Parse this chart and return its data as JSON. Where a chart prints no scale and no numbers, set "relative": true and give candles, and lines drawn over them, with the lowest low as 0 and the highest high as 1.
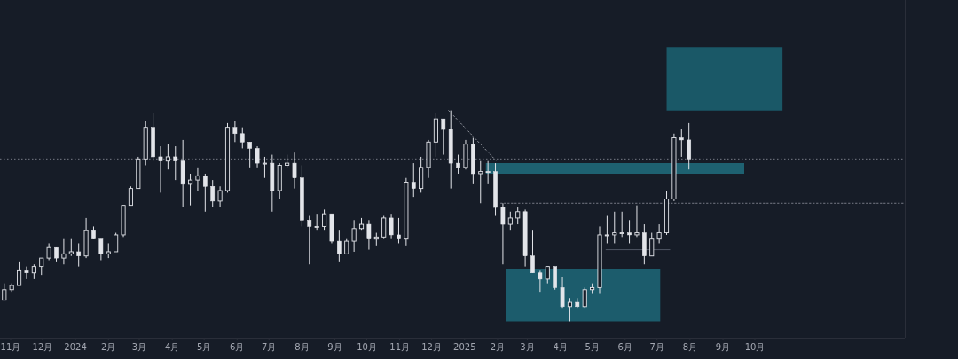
{
  "chart_data": {
    "type": "candlestick",
    "relative": true,
    "color": "#e3e5ea",
    "xlim": [
      "2023-10-22",
      "2026-02-19"
    ],
    "xticks": [
      {
        "value": "2023-11-01",
        "label": "11月"
      },
      {
        "value": "2023-12-01",
        "label": "12月"
      },
      {
        "value": "2024-01-01",
        "label": "2024"
      },
      {
        "value": "2024-02-01",
        "label": "2月"
      },
      {
        "value": "2024-03-01",
        "label": "3月"
      },
      {
        "value": "2024-04-01",
        "label": "4月"
      },
      {
        "value": "2024-05-01",
        "label": "5月"
      },
      {
        "value": "2024-06-01",
        "label": "6月"
      },
      {
        "value": "2024-07-01",
        "label": "7月"
      },
      {
        "value": "2024-08-01",
        "label": "8月"
      },
      {
        "value": "2024-09-01",
        "label": "9月"
      },
      {
        "value": "2024-10-01",
        "label": "10月"
      },
      {
        "value": "2024-11-01",
        "label": "11月"
      },
      {
        "value": "2024-12-01",
        "label": "12月"
      },
      {
        "value": "2025-01-01",
        "label": "2025"
      },
      {
        "value": "2025-02-01",
        "label": "2月"
      },
      {
        "value": "2025-03-01",
        "label": "3月"
      },
      {
        "value": "2025-04-01",
        "label": "4月"
      },
      {
        "value": "2025-05-01",
        "label": "5月"
      },
      {
        "value": "2025-06-01",
        "label": "6月"
      },
      {
        "value": "2025-07-01",
        "label": "7月"
      },
      {
        "value": "2025-08-01",
        "label": "8月"
      },
      {
        "value": "2025-09-01",
        "label": "9月"
      },
      {
        "value": "2025-10-01",
        "label": "10月"
      }
    ],
    "x": [
      "2023-10-26",
      "2023-11-02",
      "2023-11-09",
      "2023-11-16",
      "2023-11-23",
      "2023-11-30",
      "2023-12-07",
      "2023-12-14",
      "2023-12-21",
      "2023-12-28",
      "2024-01-04",
      "2024-01-11",
      "2024-01-18",
      "2024-01-25",
      "2024-02-01",
      "2024-02-08",
      "2024-02-15",
      "2024-02-22",
      "2024-02-29",
      "2024-03-07",
      "2024-03-14",
      "2024-03-21",
      "2024-03-28",
      "2024-04-04",
      "2024-04-11",
      "2024-04-18",
      "2024-04-25",
      "2024-05-02",
      "2024-05-09",
      "2024-05-16",
      "2024-05-23",
      "2024-05-30",
      "2024-06-06",
      "2024-06-13",
      "2024-06-20",
      "2024-06-27",
      "2024-07-04",
      "2024-07-11",
      "2024-07-18",
      "2024-07-25",
      "2024-08-01",
      "2024-08-08",
      "2024-08-15",
      "2024-08-22",
      "2024-08-29",
      "2024-09-05",
      "2024-09-12",
      "2024-09-19",
      "2024-09-26",
      "2024-10-03",
      "2024-10-10",
      "2024-10-17",
      "2024-10-24",
      "2024-10-31",
      "2024-11-07",
      "2024-11-14",
      "2024-11-21",
      "2024-11-28",
      "2024-12-05",
      "2024-12-12",
      "2024-12-19",
      "2024-12-26",
      "2025-01-02",
      "2025-01-09",
      "2025-01-16",
      "2025-01-23",
      "2025-01-30",
      "2025-02-06",
      "2025-02-13",
      "2025-02-20",
      "2025-02-27",
      "2025-03-06",
      "2025-03-13",
      "2025-03-20",
      "2025-03-27",
      "2025-04-03",
      "2025-04-10",
      "2025-04-17",
      "2025-04-24",
      "2025-05-01",
      "2025-05-08",
      "2025-05-15",
      "2025-05-22",
      "2025-05-29",
      "2025-06-05",
      "2025-06-12",
      "2025-06-19",
      "2025-06-26",
      "2025-07-03",
      "2025-07-10",
      "2025-07-17",
      "2025-07-24",
      "2025-07-31"
    ],
    "ohlc": [
      [
        0.1,
        0.18,
        0.1,
        0.15
      ],
      [
        0.15,
        0.18,
        0.14,
        0.17
      ],
      [
        0.17,
        0.28,
        0.17,
        0.24
      ],
      [
        0.24,
        0.26,
        0.2,
        0.23
      ],
      [
        0.23,
        0.27,
        0.2,
        0.26
      ],
      [
        0.26,
        0.3,
        0.22,
        0.3
      ],
      [
        0.3,
        0.37,
        0.29,
        0.35
      ],
      [
        0.35,
        0.35,
        0.28,
        0.3
      ],
      [
        0.3,
        0.39,
        0.27,
        0.32
      ],
      [
        0.32,
        0.39,
        0.31,
        0.33
      ],
      [
        0.33,
        0.37,
        0.26,
        0.31
      ],
      [
        0.31,
        0.49,
        0.3,
        0.43
      ],
      [
        0.43,
        0.45,
        0.39,
        0.39
      ],
      [
        0.39,
        0.39,
        0.29,
        0.32
      ],
      [
        0.32,
        0.37,
        0.3,
        0.33
      ],
      [
        0.33,
        0.42,
        0.33,
        0.41
      ],
      [
        0.41,
        0.55,
        0.4,
        0.55
      ],
      [
        0.55,
        0.64,
        0.55,
        0.63
      ],
      [
        0.63,
        0.78,
        0.63,
        0.77
      ],
      [
        0.77,
        0.95,
        0.74,
        0.92
      ],
      [
        0.92,
        0.99,
        0.76,
        0.78
      ],
      [
        0.78,
        0.83,
        0.61,
        0.76
      ],
      [
        0.76,
        0.84,
        0.72,
        0.78
      ],
      [
        0.78,
        0.83,
        0.67,
        0.76
      ],
      [
        0.76,
        0.86,
        0.54,
        0.65
      ],
      [
        0.65,
        0.7,
        0.55,
        0.67
      ],
      [
        0.67,
        0.73,
        0.62,
        0.69
      ],
      [
        0.69,
        0.7,
        0.52,
        0.64
      ],
      [
        0.64,
        0.67,
        0.54,
        0.57
      ],
      [
        0.57,
        0.64,
        0.54,
        0.62
      ],
      [
        0.62,
        0.94,
        0.61,
        0.92
      ],
      [
        0.92,
        0.95,
        0.85,
        0.89
      ],
      [
        0.89,
        0.92,
        0.82,
        0.85
      ],
      [
        0.85,
        0.85,
        0.73,
        0.82
      ],
      [
        0.82,
        0.83,
        0.73,
        0.75
      ],
      [
        0.75,
        0.78,
        0.68,
        0.75
      ],
      [
        0.75,
        0.79,
        0.52,
        0.62
      ],
      [
        0.62,
        0.75,
        0.58,
        0.74
      ],
      [
        0.74,
        0.79,
        0.73,
        0.75
      ],
      [
        0.75,
        0.8,
        0.63,
        0.68
      ],
      [
        0.68,
        0.74,
        0.45,
        0.48
      ],
      [
        0.48,
        0.5,
        0.27,
        0.45
      ],
      [
        0.45,
        0.51,
        0.43,
        0.45
      ],
      [
        0.45,
        0.53,
        0.43,
        0.51
      ],
      [
        0.51,
        0.51,
        0.37,
        0.38
      ],
      [
        0.38,
        0.43,
        0.28,
        0.32
      ],
      [
        0.32,
        0.39,
        0.32,
        0.38
      ],
      [
        0.38,
        0.48,
        0.33,
        0.44
      ],
      [
        0.44,
        0.49,
        0.43,
        0.46
      ],
      [
        0.46,
        0.48,
        0.34,
        0.39
      ],
      [
        0.39,
        0.42,
        0.36,
        0.4
      ],
      [
        0.4,
        0.5,
        0.39,
        0.49
      ],
      [
        0.49,
        0.51,
        0.39,
        0.41
      ],
      [
        0.41,
        0.49,
        0.37,
        0.39
      ],
      [
        0.39,
        0.68,
        0.36,
        0.66
      ],
      [
        0.66,
        0.75,
        0.59,
        0.63
      ],
      [
        0.63,
        0.78,
        0.61,
        0.73
      ],
      [
        0.73,
        0.86,
        0.68,
        0.85
      ],
      [
        0.85,
        0.99,
        0.78,
        0.96
      ],
      [
        0.96,
        0.96,
        0.79,
        0.91
      ],
      [
        0.91,
        1.0,
        0.63,
        0.75
      ],
      [
        0.75,
        0.79,
        0.7,
        0.73
      ],
      [
        0.73,
        0.86,
        0.72,
        0.84
      ],
      [
        0.84,
        0.87,
        0.65,
        0.7
      ],
      [
        0.7,
        0.76,
        0.56,
        0.71
      ],
      [
        0.71,
        0.76,
        0.65,
        0.71
      ],
      [
        0.71,
        0.75,
        0.5,
        0.54
      ],
      [
        0.54,
        0.56,
        0.27,
        0.46
      ],
      [
        0.46,
        0.52,
        0.43,
        0.49
      ],
      [
        0.49,
        0.54,
        0.46,
        0.52
      ],
      [
        0.52,
        0.53,
        0.26,
        0.31
      ],
      [
        0.31,
        0.43,
        0.23,
        0.23
      ],
      [
        0.23,
        0.24,
        0.14,
        0.2
      ],
      [
        0.2,
        0.26,
        0.18,
        0.26
      ],
      [
        0.26,
        0.26,
        0.15,
        0.16
      ],
      [
        0.16,
        0.21,
        0.06,
        0.07
      ],
      [
        0.07,
        0.11,
        0.0,
        0.09
      ],
      [
        0.09,
        0.11,
        0.06,
        0.07
      ],
      [
        0.07,
        0.16,
        0.06,
        0.15
      ],
      [
        0.15,
        0.18,
        0.13,
        0.16
      ],
      [
        0.16,
        0.45,
        0.13,
        0.41
      ],
      [
        0.41,
        0.5,
        0.37,
        0.41
      ],
      [
        0.41,
        0.52,
        0.37,
        0.42
      ],
      [
        0.42,
        0.52,
        0.4,
        0.42
      ],
      [
        0.42,
        0.48,
        0.37,
        0.41
      ],
      [
        0.41,
        0.55,
        0.4,
        0.42
      ],
      [
        0.42,
        0.46,
        0.27,
        0.31
      ],
      [
        0.31,
        0.42,
        0.31,
        0.39
      ],
      [
        0.39,
        0.46,
        0.37,
        0.42
      ],
      [
        0.42,
        0.62,
        0.41,
        0.58
      ],
      [
        0.58,
        0.89,
        0.57,
        0.87
      ],
      [
        0.87,
        0.91,
        0.78,
        0.86
      ],
      [
        0.86,
        0.94,
        0.72,
        0.77
      ]
    ],
    "series": [
      {
        "type": "line",
        "x": [
          "2025-07-10",
          "2025-10-27"
        ],
        "values": [
          null,
          null
        ],
        "lower": [
          1.0,
          1.0
        ],
        "upper": [
          1.3,
          1.3
        ],
        "color": "#1b5d6c"
      },
      {
        "type": "line",
        "x": [
          "2025-01-21",
          "2025-09-21"
        ],
        "values": [
          null,
          null
        ],
        "lower": [
          0.7,
          0.7
        ],
        "upper": [
          0.75,
          0.75
        ],
        "color": "#1f6777"
      },
      {
        "type": "line",
        "x": [
          "2025-02-09",
          "2025-07-04"
        ],
        "values": [
          null,
          null
        ],
        "lower": [
          0.0,
          0.0
        ],
        "upper": [
          0.25,
          0.25
        ],
        "color": "#1d6272"
      },
      {
        "type": "line",
        "x": [
          "2024-12-17",
          "2025-01-31"
        ],
        "values": [
          1.0,
          0.76
        ],
        "color": "#9598a1",
        "line_style": "dotted"
      },
      {
        "type": "line",
        "x": [
          "2025-02-04",
          "2026-02-19"
        ],
        "values": [
          0.56,
          0.56
        ],
        "color": "#787b86",
        "line_style": "dotted"
      },
      {
        "type": "line",
        "x": [
          "2025-05-14",
          "2025-07-13"
        ],
        "values": [
          0.34,
          0.34
        ],
        "color": "#4f5563",
        "line_style": "solid"
      }
    ],
    "ref_lines": [
      {
        "axis": "y",
        "value": 0.77,
        "color": "#787b86",
        "line_style": "dotted"
      }
    ]
  }
}
